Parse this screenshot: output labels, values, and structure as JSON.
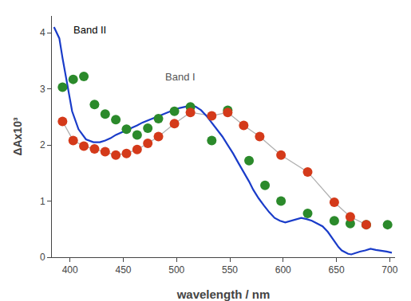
{
  "chart_data": {
    "type": "line",
    "xlabel": "wavelength / nm",
    "ylabel": "ΔAx10³",
    "xlim": [
      383,
      705
    ],
    "ylim": [
      0,
      4.3
    ],
    "xticks": [
      400,
      450,
      500,
      550,
      600,
      650,
      700
    ],
    "yticks": [
      0,
      1,
      2,
      3,
      4
    ],
    "grid": false,
    "series": [
      {
        "type": "line",
        "color": "#b0b0b0",
        "x": [
          393,
          403,
          413,
          423,
          433,
          443,
          453,
          463,
          473,
          483,
          498,
          513,
          533,
          548,
          563,
          578,
          598,
          623,
          648,
          663,
          678
        ],
        "values": [
          2.42,
          2.08,
          1.98,
          1.93,
          1.88,
          1.82,
          1.85,
          1.92,
          2.03,
          2.15,
          2.38,
          2.58,
          2.52,
          2.58,
          2.35,
          2.15,
          1.82,
          1.52,
          0.98,
          0.72,
          0.58
        ]
      },
      {
        "type": "line",
        "color": "#1a3cc9",
        "x": [
          385,
          390,
          393,
          397,
          402,
          408,
          415,
          422,
          428,
          433,
          438,
          443,
          448,
          453,
          458,
          463,
          468,
          473,
          478,
          483,
          488,
          493,
          498,
          503,
          508,
          513,
          518,
          523,
          528,
          533,
          538,
          543,
          548,
          553,
          558,
          563,
          568,
          572,
          577,
          582,
          587,
          592,
          597,
          602,
          607,
          612,
          617,
          622,
          627,
          632,
          637,
          642,
          647,
          652,
          655,
          658,
          661,
          664,
          667,
          672,
          677,
          682,
          687,
          692,
          697,
          702
        ],
        "values": [
          4.1,
          3.9,
          3.55,
          3.1,
          2.6,
          2.28,
          2.1,
          2.05,
          2.05,
          2.08,
          2.12,
          2.18,
          2.22,
          2.26,
          2.3,
          2.35,
          2.4,
          2.44,
          2.48,
          2.52,
          2.56,
          2.6,
          2.63,
          2.66,
          2.68,
          2.7,
          2.68,
          2.62,
          2.52,
          2.4,
          2.28,
          2.15,
          2.0,
          1.85,
          1.68,
          1.52,
          1.35,
          1.2,
          1.05,
          0.92,
          0.8,
          0.7,
          0.65,
          0.62,
          0.65,
          0.68,
          0.7,
          0.68,
          0.65,
          0.6,
          0.55,
          0.45,
          0.32,
          0.18,
          0.12,
          0.09,
          0.06,
          0.05,
          0.07,
          0.1,
          0.12,
          0.15,
          0.13,
          0.12,
          0.1,
          0.08
        ]
      },
      {
        "type": "scatter",
        "color": "#2b8a2b",
        "x": [
          393,
          403,
          413,
          423,
          433,
          443,
          453,
          463,
          473,
          483,
          498,
          513,
          533,
          548,
          568,
          583,
          598,
          623,
          648,
          663,
          678,
          698
        ],
        "values": [
          3.03,
          3.17,
          3.22,
          2.72,
          2.55,
          2.45,
          2.28,
          2.18,
          2.3,
          2.47,
          2.6,
          2.68,
          2.08,
          2.62,
          1.72,
          1.28,
          1.0,
          0.78,
          0.65,
          0.6,
          0.58,
          0.58
        ]
      },
      {
        "type": "scatter",
        "color": "#d43a1a",
        "x": [
          393,
          403,
          413,
          423,
          433,
          443,
          453,
          463,
          473,
          483,
          498,
          513,
          533,
          548,
          563,
          578,
          598,
          623,
          648,
          663,
          678
        ],
        "values": [
          2.42,
          2.08,
          1.98,
          1.93,
          1.88,
          1.82,
          1.85,
          1.92,
          2.03,
          2.15,
          2.38,
          2.58,
          2.52,
          2.58,
          2.35,
          2.15,
          1.82,
          1.52,
          0.98,
          0.72,
          0.58
        ]
      }
    ],
    "annotations": [
      {
        "text": "Band II",
        "x": 402,
        "y": 4.05,
        "color": "#000000"
      },
      {
        "text": "Band I",
        "x": 488,
        "y": 3.22,
        "color": "#555555"
      }
    ]
  }
}
